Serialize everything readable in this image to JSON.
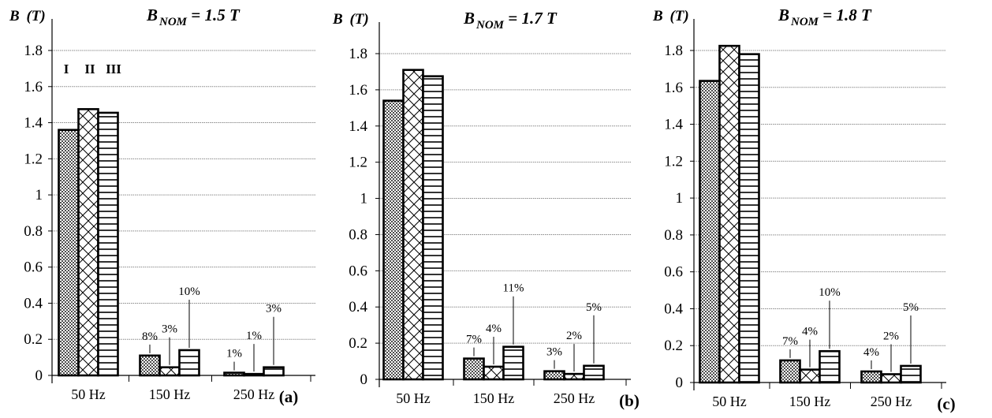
{
  "chart_data": [
    {
      "type": "bar",
      "panel_label": "(a)",
      "title": {
        "var": "B",
        "sub": "NOM",
        "rest": " = 1.5 T"
      },
      "ylabel": {
        "var": "B",
        "unit": " (T)"
      },
      "ylim": [
        0,
        1.8
      ],
      "yticks": [
        "0",
        "0.2",
        "0.4",
        "0.6",
        "0.8",
        "1",
        "1.2",
        "1.4",
        "1.6",
        "1.8"
      ],
      "grid": true,
      "categories": [
        "50 Hz",
        "150 Hz",
        "250 Hz"
      ],
      "series": [
        {
          "name": "I",
          "values": [
            1.36,
            0.11,
            0.015
          ]
        },
        {
          "name": "II",
          "values": [
            1.475,
            0.045,
            0.008
          ]
        },
        {
          "name": "III",
          "values": [
            1.455,
            0.14,
            0.045
          ]
        }
      ],
      "annotations": [
        [
          "",
          "",
          ""
        ],
        [
          "8%",
          "3%",
          "10%"
        ],
        [
          "1%",
          "1%",
          "3%"
        ]
      ],
      "legend": "top-left"
    },
    {
      "type": "bar",
      "panel_label": "(b)",
      "title": {
        "var": "B",
        "sub": "NOM",
        "rest": " = 1.7 T"
      },
      "ylabel": {
        "var": "B",
        "unit": " (T)"
      },
      "ylim": [
        0,
        1.8
      ],
      "yticks": [
        "0",
        "0.2",
        "0.4",
        "0.6",
        "0.8",
        "1",
        "1.2",
        "1.4",
        "1.6",
        "1.8"
      ],
      "grid": true,
      "categories": [
        "50 Hz",
        "150 Hz",
        "250 Hz"
      ],
      "series": [
        {
          "name": "I",
          "values": [
            1.54,
            0.115,
            0.045
          ]
        },
        {
          "name": "II",
          "values": [
            1.71,
            0.07,
            0.03
          ]
        },
        {
          "name": "III",
          "values": [
            1.675,
            0.18,
            0.075
          ]
        }
      ],
      "annotations": [
        [
          "",
          "",
          ""
        ],
        [
          "7%",
          "4%",
          "11%"
        ],
        [
          "3%",
          "2%",
          "5%"
        ]
      ]
    },
    {
      "type": "bar",
      "panel_label": "(c)",
      "title": {
        "var": "B",
        "sub": "NOM",
        "rest": " = 1.8 T"
      },
      "ylabel": {
        "var": "B",
        "unit": " (T)"
      },
      "ylim": [
        0,
        1.8
      ],
      "yticks": [
        "0",
        "0.2",
        "0.4",
        "0.6",
        "0.8",
        "1",
        "1.2",
        "1.4",
        "1.6",
        "1.8"
      ],
      "grid": true,
      "categories": [
        "50 Hz",
        "150 Hz",
        "250 Hz"
      ],
      "series": [
        {
          "name": "I",
          "values": [
            1.635,
            0.12,
            0.06
          ]
        },
        {
          "name": "II",
          "values": [
            1.825,
            0.07,
            0.045
          ]
        },
        {
          "name": "III",
          "values": [
            1.78,
            0.17,
            0.09
          ]
        }
      ],
      "annotations": [
        [
          "",
          "",
          ""
        ],
        [
          "7%",
          "4%",
          "10%"
        ],
        [
          "4%",
          "2%",
          "5%"
        ]
      ]
    }
  ]
}
